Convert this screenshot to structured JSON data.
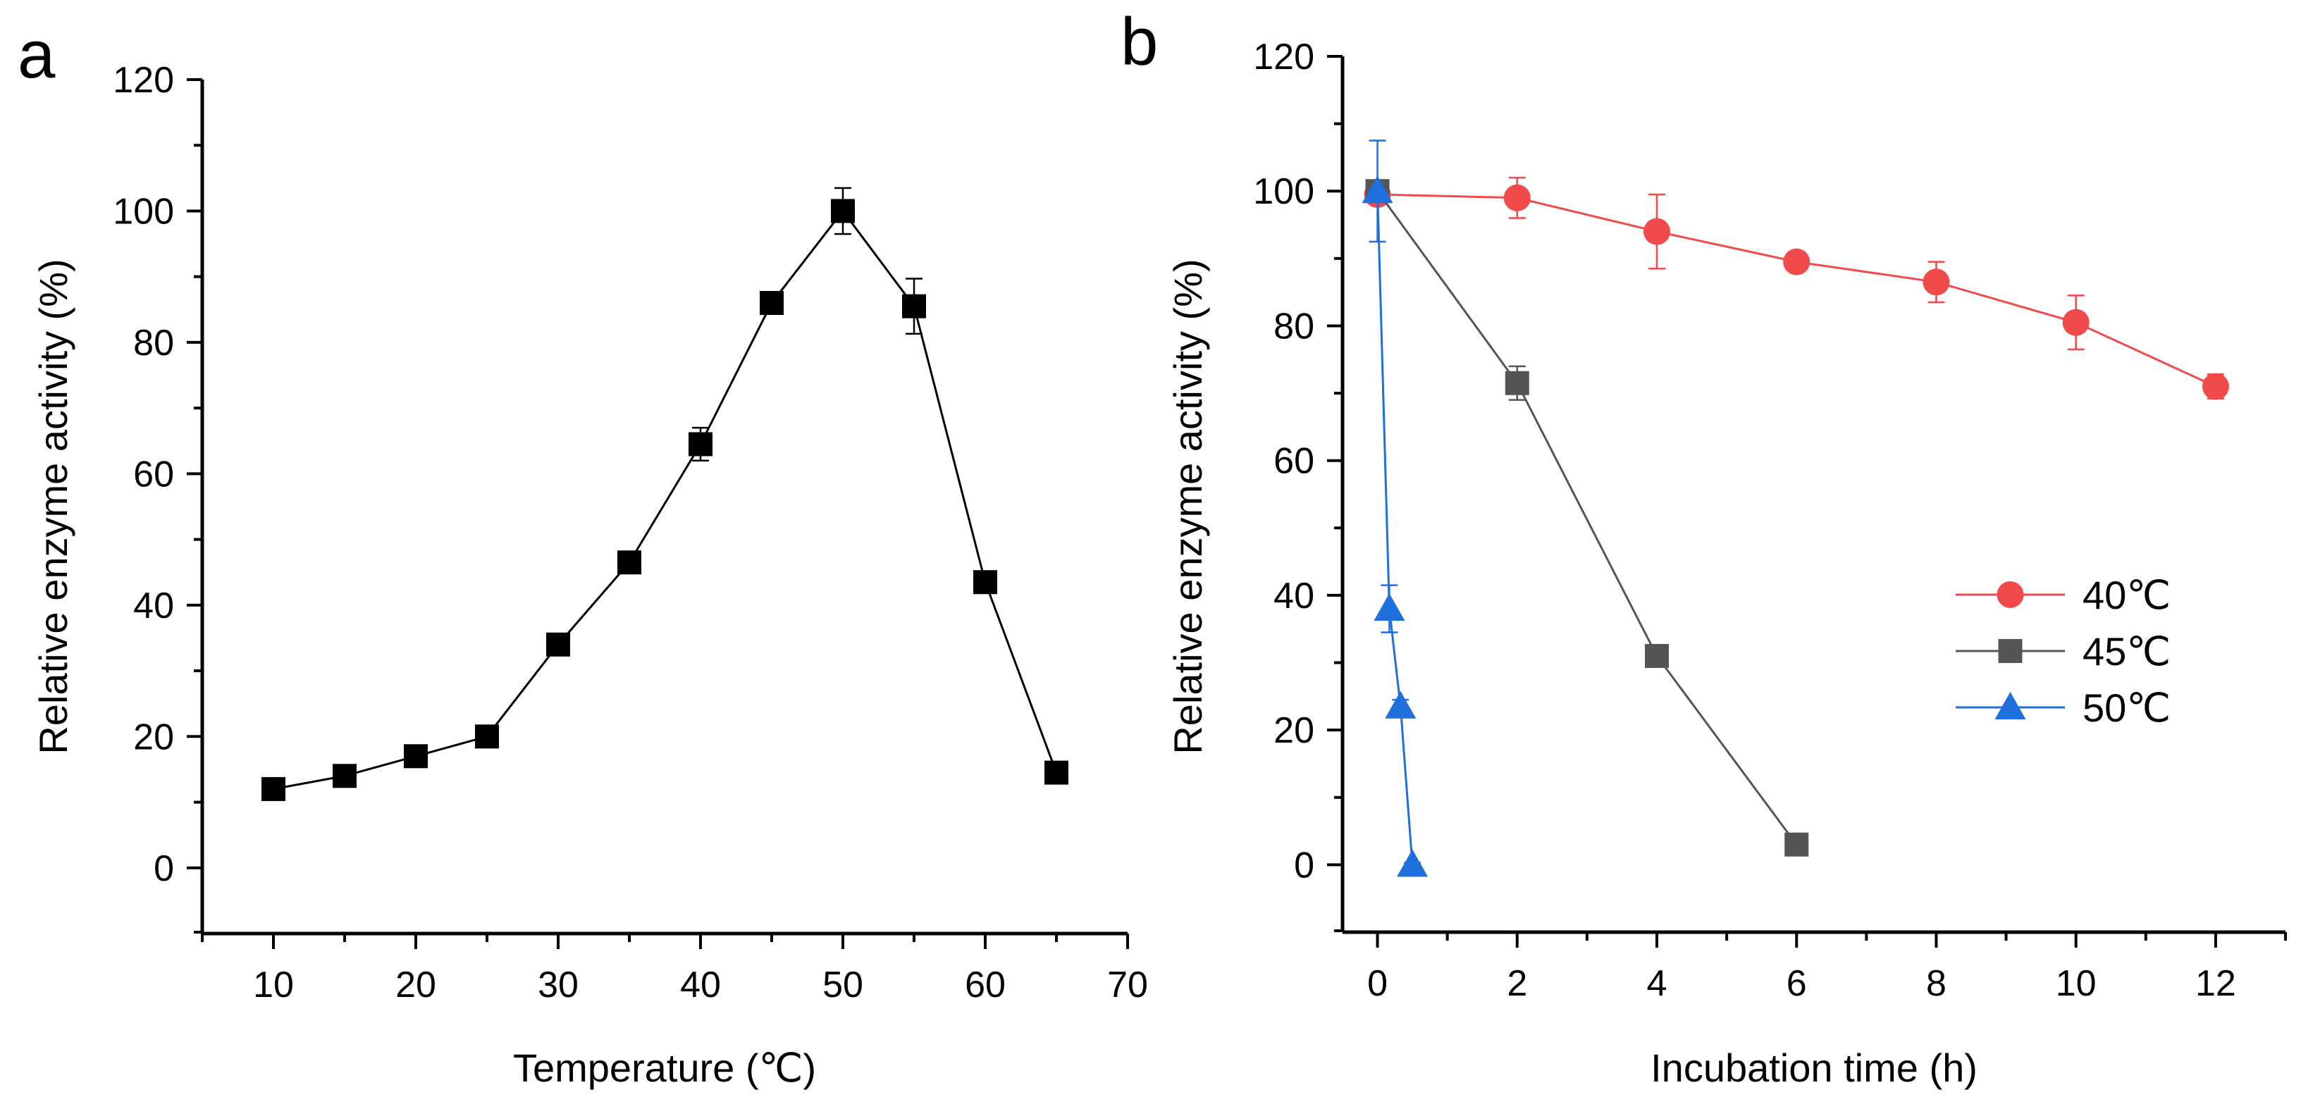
{
  "chart_data": [
    {
      "panel": "a",
      "type": "line",
      "xlabel": "Temperature (℃)",
      "ylabel": "Relative enzyme activity (%)",
      "xlim": [
        5,
        70
      ],
      "ylim": [
        -10,
        120
      ],
      "xticks": [
        10,
        20,
        30,
        40,
        50,
        60,
        70
      ],
      "yticks": [
        0,
        20,
        40,
        60,
        80,
        100,
        120
      ],
      "series": [
        {
          "marker": "square",
          "color": "#000000",
          "x": [
            10,
            15,
            20,
            25,
            30,
            35,
            40,
            45,
            50,
            55,
            60,
            65
          ],
          "y": [
            12,
            14,
            17,
            20,
            34,
            46.5,
            64.5,
            86,
            100,
            85.5,
            43.5,
            14.5
          ],
          "err": [
            0.8,
            0.8,
            0.8,
            0.8,
            1.0,
            1.5,
            2.5,
            1.0,
            3.5,
            4.2,
            1.2,
            0.8
          ]
        }
      ]
    },
    {
      "panel": "b",
      "type": "line",
      "xlabel": "Incubation time (h)",
      "ylabel": "Relative enzyme activity (%)",
      "xlim": [
        -0.5,
        13
      ],
      "ylim": [
        -10,
        120
      ],
      "xticks": [
        0,
        2,
        4,
        6,
        8,
        10,
        12
      ],
      "yticks": [
        0,
        20,
        40,
        60,
        80,
        100,
        120
      ],
      "legend": "right",
      "series": [
        {
          "name": "40℃",
          "marker": "circle",
          "color": "#f04a4a",
          "x": [
            0,
            2,
            4,
            6,
            8,
            10,
            12
          ],
          "y": [
            99.5,
            99,
            94,
            89.5,
            86.5,
            80.5,
            71
          ],
          "err": [
            1.0,
            3.0,
            5.5,
            1.2,
            3.0,
            4.0,
            1.8
          ]
        },
        {
          "name": "45℃",
          "marker": "square",
          "color": "#555555",
          "x": [
            0,
            2,
            4,
            6
          ],
          "y": [
            100,
            71.5,
            31,
            3
          ],
          "err": [
            1.0,
            2.5,
            1.0,
            0.5
          ]
        },
        {
          "name": "50℃",
          "marker": "triangle",
          "color": "#1f6fdc",
          "x": [
            0,
            0.17,
            0.33,
            0.5
          ],
          "y": [
            100,
            38,
            23.5,
            0
          ],
          "err": [
            7.5,
            3.5,
            1.0,
            0.3
          ]
        }
      ]
    }
  ]
}
